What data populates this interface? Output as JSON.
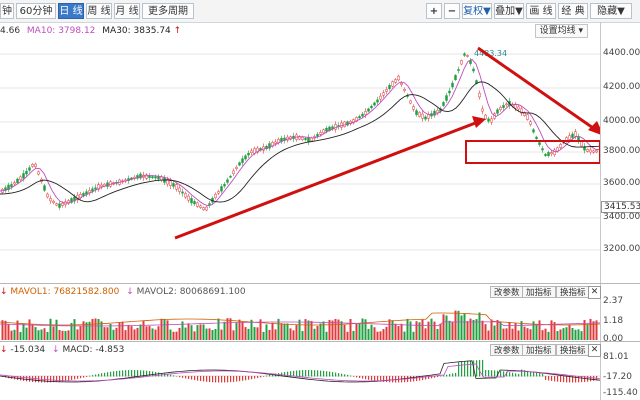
{
  "toolbar": {
    "left_tabs": [
      "钟",
      "60分钟",
      "日 线",
      "周 线",
      "月 线",
      "更多周期"
    ],
    "active_tab": "日 线",
    "zoom_in": "+",
    "zoom_out": "−",
    "adjust_label": "复权",
    "overlay_label": "叠加",
    "draw_label": "画 线",
    "classic_label": "经 典",
    "hide_label": "隐藏",
    "caret": "▼"
  },
  "main_chart": {
    "ma5_label": "4.66",
    "ma10_label": "MA10: 3798.12",
    "ma30_label": "MA30: 3835.74",
    "arrow_glyph": "↑",
    "settings_button": "设置均线",
    "peak_label": "4483.34",
    "current_price": "3415.53",
    "y_ticks": [
      "4400.00",
      "4200.00",
      "4000.00",
      "3800.00",
      "3600.00",
      "3400.00",
      "3200.00"
    ],
    "colors": {
      "up": "#e03a3a",
      "down": "#20a040",
      "ma10": "#c04cc0",
      "ma30": "#222222",
      "annotation": "#d01010"
    }
  },
  "volume_panel": {
    "mavol1_label": "MAVOL1: 76821582.800",
    "mavol2_label": "MAVOL2: 80068691.100",
    "params_button": "改参数",
    "add_indicator_button": "加指标",
    "switch_indicator_button": "换指标",
    "close_glyph": "✕",
    "y_ticks": [
      "2.37",
      "1.18",
      "0.00"
    ]
  },
  "macd_panel": {
    "diff_label": "-15.034",
    "macd_label": "MACD: -4.853",
    "params_button": "改参数",
    "add_indicator_button": "加指标",
    "switch_indicator_button": "换指标",
    "close_glyph": "✕",
    "y_ticks": [
      "81.01",
      "-17.20",
      "-115.40"
    ]
  }
}
